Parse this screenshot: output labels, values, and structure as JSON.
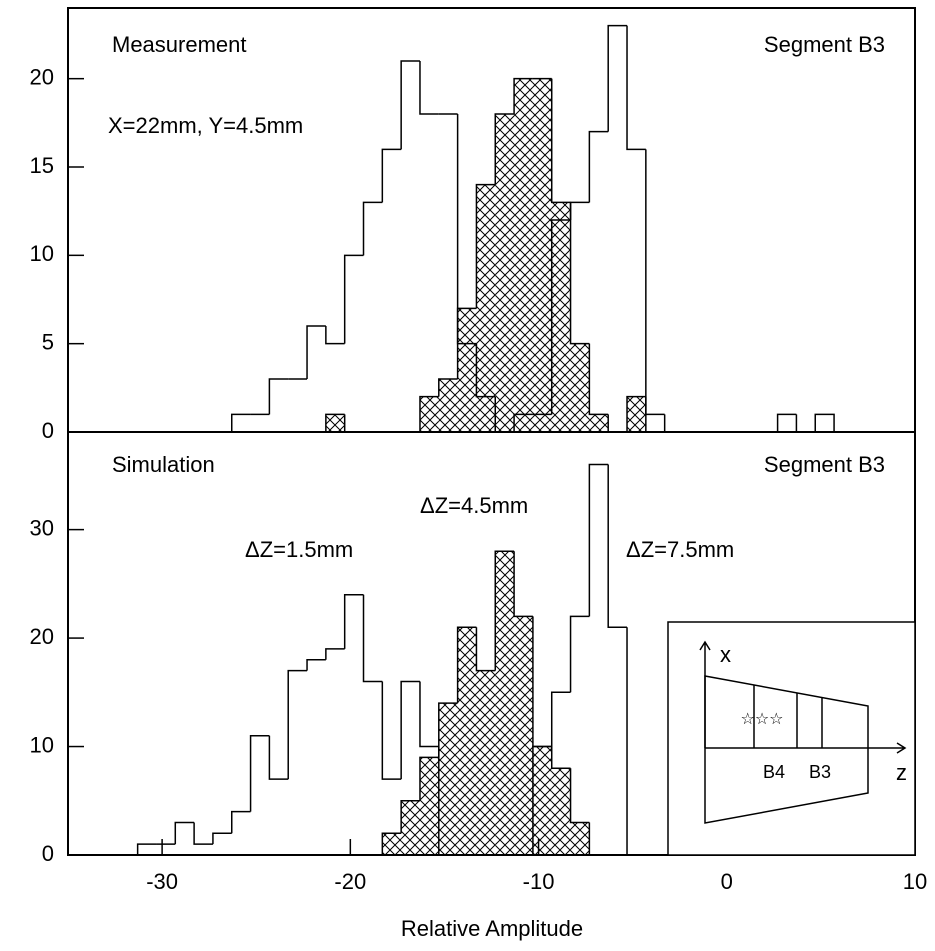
{
  "chart_data": [
    {
      "type": "histogram",
      "annotations": [
        "Measurement",
        "X=22mm, Y=4.5mm",
        "Segment B3"
      ],
      "bins": [
        -26.3,
        -25.3,
        -24.3,
        -23.3,
        -22.3,
        -21.3,
        -20.3,
        -19.3,
        -18.3,
        -17.3,
        -16.3,
        -15.3,
        -14.3,
        -13.3,
        -12.3,
        -11.3,
        -10.3,
        -9.3,
        -8.3,
        -7.3,
        -6.3,
        -5.3,
        -4.3,
        -3.3,
        -2.3,
        -1.3,
        -0.3,
        0.7,
        1.7,
        2.7,
        3.7,
        4.7,
        5.7
      ],
      "series": [
        {
          "color": "#000000",
          "fill": "hatch",
          "values": [
            0,
            0,
            0,
            0,
            0,
            1,
            0,
            0,
            0,
            0,
            2,
            3,
            7,
            14,
            18,
            20,
            20,
            13,
            5,
            1,
            0,
            2,
            0,
            0,
            0,
            0,
            0,
            0,
            0,
            0,
            0,
            0
          ]
        },
        {
          "color": "#000000",
          "fill": "none",
          "values": [
            1,
            1,
            3,
            3,
            6,
            5,
            10,
            13,
            16,
            21,
            18,
            18,
            5,
            2,
            0,
            1,
            1,
            12,
            13,
            17,
            23,
            16,
            1,
            0,
            0,
            0,
            0,
            0,
            0,
            1,
            0,
            1
          ]
        }
      ],
      "xlim": [
        -35,
        10
      ],
      "ylim": [
        0,
        24
      ],
      "yticks": [
        0,
        5,
        10,
        15,
        20
      ]
    },
    {
      "type": "histogram",
      "annotations": [
        "Simulation",
        "Segment B3",
        "ΔZ=1.5mm",
        "ΔZ=4.5mm",
        "ΔZ=7.5mm"
      ],
      "xlabel": "Relative Amplitude",
      "bins": [
        -31.3,
        -30.3,
        -29.3,
        -28.3,
        -27.3,
        -26.3,
        -25.3,
        -24.3,
        -23.3,
        -22.3,
        -21.3,
        -20.3,
        -19.3,
        -18.3,
        -17.3,
        -16.3,
        -15.3,
        -14.3,
        -13.3,
        -12.3,
        -11.3,
        -10.3,
        -9.3,
        -8.3,
        -7.3,
        -6.3,
        -5.3,
        -4.3
      ],
      "series": [
        {
          "color": "#000000",
          "fill": "hatch",
          "values": [
            0,
            0,
            0,
            0,
            0,
            0,
            0,
            0,
            0,
            0,
            0,
            0,
            0,
            2,
            5,
            9,
            14,
            21,
            17,
            28,
            22,
            10,
            8,
            3,
            0,
            0,
            0
          ]
        },
        {
          "color": "#000000",
          "fill": "none",
          "values": [
            1,
            1,
            3,
            1,
            2,
            4,
            11,
            7,
            17,
            18,
            19,
            24,
            16,
            7,
            16,
            10,
            0,
            0,
            0,
            0,
            0,
            10,
            15,
            22,
            36,
            21,
            0
          ]
        }
      ],
      "xlim": [
        -35,
        10
      ],
      "xticks": [
        -30,
        -20,
        -10,
        0,
        10
      ],
      "ylim": [
        0,
        39
      ],
      "yticks": [
        0,
        10,
        20,
        30
      ],
      "inset_labels": {
        "x": "x",
        "z": "z",
        "b4": "B4",
        "b3": "B3"
      }
    }
  ]
}
